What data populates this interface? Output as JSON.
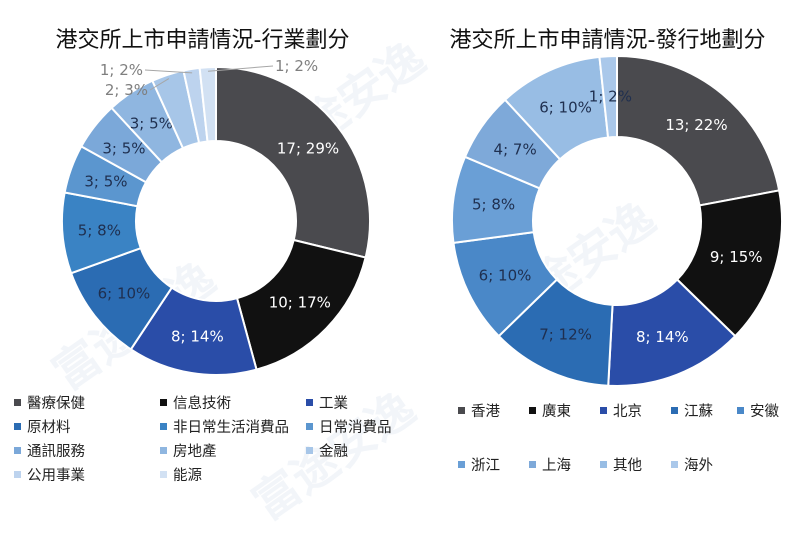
{
  "watermark": "富途安逸",
  "chart_data": [
    {
      "type": "donut",
      "title": "港交所上市申請情況-行業劃分",
      "labels": [
        "醫療保健",
        "信息技術",
        "工業",
        "原材料",
        "非日常生活消費品",
        "日常消費品",
        "通訊服務",
        "房地產",
        "金融",
        "公用事業",
        "能源"
      ],
      "values": [
        17,
        10,
        8,
        6,
        5,
        3,
        3,
        3,
        2,
        1,
        1
      ],
      "percents": [
        29,
        17,
        14,
        10,
        8,
        5,
        5,
        5,
        3,
        2,
        2
      ],
      "data_labels": [
        "17; 29%",
        "10; 17%",
        "8; 14%",
        "6; 10%",
        "5; 8%",
        "3; 5%",
        "3; 5%",
        "3; 5%",
        "2; 3%",
        "1; 2%",
        "1; 2%"
      ],
      "colors": [
        "#4a4a4e",
        "#111111",
        "#2a4da8",
        "#2b6cb3",
        "#3a83c4",
        "#5b96cf",
        "#7ba8d9",
        "#8fb6e0",
        "#a7c6e8",
        "#bdd3ee",
        "#d2e1f3"
      ],
      "legend_position": "bottom"
    },
    {
      "type": "donut",
      "title": "港交所上市申請情況-發行地劃分",
      "labels": [
        "香港",
        "廣東",
        "北京",
        "江蘇",
        "安徽",
        "浙江",
        "上海",
        "其他",
        "海外"
      ],
      "values": [
        13,
        9,
        8,
        7,
        6,
        5,
        4,
        6,
        1
      ],
      "percents": [
        22,
        15,
        14,
        12,
        10,
        8,
        7,
        10,
        2
      ],
      "data_labels": [
        "13; 22%",
        "9; 15%",
        "8; 14%",
        "7; 12%",
        "6; 10%",
        "5; 8%",
        "4; 7%",
        "6; 10%",
        "1; 2%"
      ],
      "colors": [
        "#4a4a4e",
        "#111111",
        "#2a4da8",
        "#2b6cb3",
        "#4a88c8",
        "#6a9fd6",
        "#7ea9d9",
        "#98bde4",
        "#aac8ea"
      ],
      "legend_position": "bottom"
    }
  ]
}
